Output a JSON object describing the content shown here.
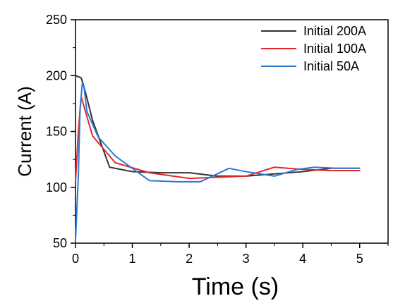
{
  "chart_data": {
    "type": "line",
    "xlabel": "Time (s)",
    "ylabel": "Current (A)",
    "xlim": [
      0,
      5.5
    ],
    "ylim": [
      50,
      250
    ],
    "x_ticks": [
      0,
      1,
      2,
      3,
      4,
      5
    ],
    "y_ticks": [
      50,
      100,
      150,
      200,
      250
    ],
    "grid": false,
    "legend_position": "top-right",
    "series": [
      {
        "name": "Initial 200A",
        "color": "#333333",
        "x": [
          0.0,
          0.05,
          0.1,
          0.15,
          0.3,
          0.6,
          1.0,
          1.5,
          2.0,
          2.5,
          3.0,
          3.5,
          4.0,
          4.5,
          5.0
        ],
        "y": [
          200,
          199,
          198,
          190,
          160,
          118,
          114,
          113,
          113,
          110,
          110,
          112,
          114,
          117,
          117
        ]
      },
      {
        "name": "Initial 100A",
        "color": "#e8262a",
        "x": [
          0.0,
          0.05,
          0.1,
          0.3,
          0.7,
          1.3,
          2.0,
          2.5,
          3.0,
          3.5,
          4.0,
          4.5,
          5.0
        ],
        "y": [
          105,
          150,
          181,
          146,
          122,
          113,
          108,
          109,
          110,
          118,
          116,
          115,
          115
        ]
      },
      {
        "name": "Initial 50A",
        "color": "#2a7ad6",
        "x": [
          0.0,
          0.05,
          0.08,
          0.12,
          0.15,
          0.2,
          0.4,
          0.7,
          1.0,
          1.3,
          1.8,
          2.2,
          2.7,
          3.0,
          3.5,
          3.9,
          4.2,
          4.6,
          5.0
        ],
        "y": [
          52,
          110,
          170,
          193,
          190,
          168,
          145,
          128,
          117,
          106,
          105,
          105,
          117,
          114,
          110,
          116,
          118,
          117,
          117
        ]
      }
    ]
  }
}
